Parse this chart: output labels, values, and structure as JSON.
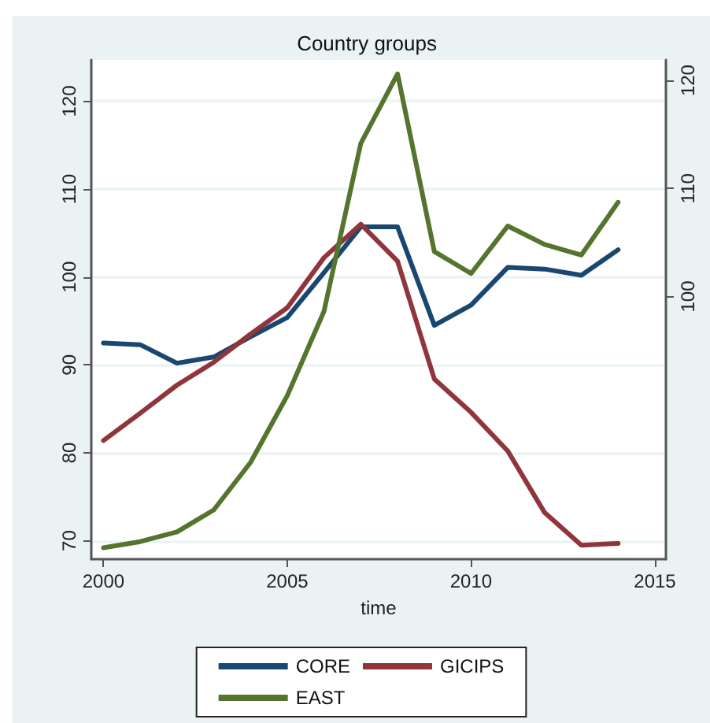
{
  "chart_data": {
    "type": "line",
    "title": "Country groups",
    "xlabel": "time",
    "x": [
      2000,
      2001,
      2002,
      2003,
      2004,
      2005,
      2006,
      2007,
      2008,
      2009,
      2010,
      2011,
      2012,
      2013,
      2014
    ],
    "series": [
      {
        "name": "CORE",
        "color": "#1a476f",
        "values": [
          92.5,
          92.3,
          90.2,
          90.9,
          93.2,
          95.4,
          100.5,
          105.7,
          105.7,
          94.5,
          96.8,
          101.1,
          100.9,
          100.2,
          103.1
        ]
      },
      {
        "name": "GICIPS",
        "color": "#90353b",
        "values": [
          81.4,
          84.5,
          87.7,
          90.3,
          93.5,
          96.5,
          102.2,
          106.0,
          101.8,
          88.4,
          84.6,
          80.2,
          73.2,
          69.5,
          69.7
        ]
      },
      {
        "name": "EAST",
        "color": "#55752f",
        "values": [
          69.2,
          69.9,
          71.0,
          73.5,
          78.9,
          86.5,
          96.1,
          115.2,
          123.1,
          102.9,
          100.4,
          105.8,
          103.7,
          102.5,
          108.5
        ]
      }
    ],
    "xlim": [
      1999.67,
      2015.3
    ],
    "xticks": [
      2000,
      2005,
      2010,
      2015
    ],
    "ylim": [
      67.9,
      124.7
    ],
    "yticks": [
      70,
      80,
      90,
      100,
      110,
      120
    ],
    "y2lim": [
      75.7,
      121.9
    ],
    "y2ticks": [
      100,
      110,
      120
    ],
    "grid": "y",
    "legend": "bottom",
    "marker": "none",
    "line_style": "solid"
  }
}
